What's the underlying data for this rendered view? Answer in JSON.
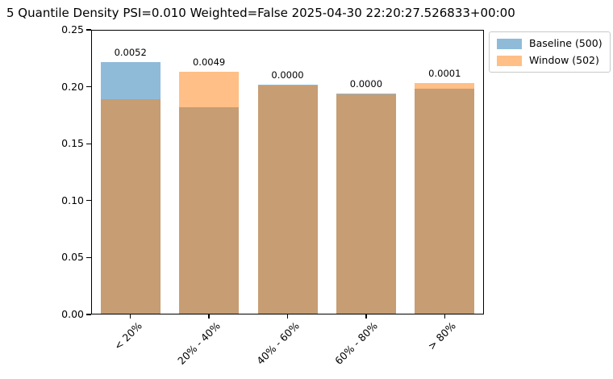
{
  "chart_data": {
    "type": "bar",
    "bar_mode": "overlap",
    "title": "5 Quantile Density PSI=0.010 Weighted=False 2025-04-30 22:20:27.526833+00:00",
    "categories": [
      "< 20%",
      "20% - 40%",
      "40% - 60%",
      "60% - 80%",
      "> 80%"
    ],
    "series": [
      {
        "name": "Baseline (500)",
        "color": "#1f77b4",
        "alpha": 0.5,
        "values": [
          0.222,
          0.182,
          0.202,
          0.194,
          0.198
        ]
      },
      {
        "name": "Window (502)",
        "color": "#ff7f0e",
        "alpha": 0.5,
        "values": [
          0.189,
          0.213,
          0.201,
          0.193,
          0.203
        ]
      }
    ],
    "annotations": [
      "0.0052",
      "0.0049",
      "0.0000",
      "0.0000",
      "0.0001"
    ],
    "y_ticks": [
      "0.00",
      "0.05",
      "0.10",
      "0.15",
      "0.20",
      "0.25"
    ],
    "ylim": [
      0,
      0.25
    ],
    "xlabel": "",
    "ylabel": "",
    "grid": false,
    "legend_position": "outside-top-right"
  }
}
